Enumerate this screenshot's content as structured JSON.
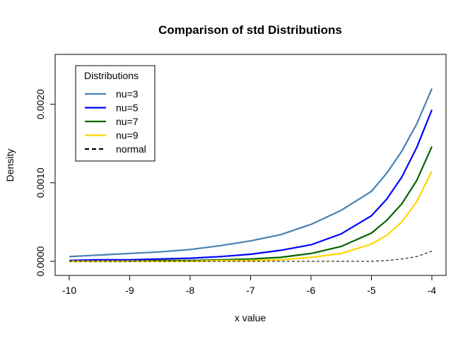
{
  "chart_data": {
    "type": "line",
    "title": "Comparison of std Distributions",
    "xlabel": "x value",
    "ylabel": "Density",
    "xlim": [
      -10,
      -4
    ],
    "ylim": [
      -0.0001,
      0.0026
    ],
    "xticks": [
      -10,
      -9,
      -8,
      -7,
      -6,
      -5,
      -4
    ],
    "xtick_labels": [
      "-10",
      "-9",
      "-8",
      "-7",
      "-6",
      "-5",
      "-4"
    ],
    "yticks": [
      0,
      0.001,
      0.002
    ],
    "ytick_labels": [
      "0.0000",
      "0.0010",
      "0.0020"
    ],
    "grid": false,
    "legend": {
      "title": "Distributions",
      "position": "top-left"
    },
    "x": [
      -10,
      -9.5,
      -9,
      -8.5,
      -8,
      -7.5,
      -7,
      -6.5,
      -6,
      -5.5,
      -5,
      -4.75,
      -4.5,
      -4.25,
      -4
    ],
    "series": [
      {
        "name": "nu=3",
        "color": "#4682B4",
        "dash": "solid",
        "values": [
          6e-05,
          8e-05,
          0.0001,
          0.00012,
          0.00015,
          0.0002,
          0.00026,
          0.00034,
          0.00047,
          0.00065,
          0.00089,
          0.00112,
          0.0014,
          0.00175,
          0.0022
        ]
      },
      {
        "name": "nu=5",
        "color": "#0000FF",
        "dash": "solid",
        "values": [
          1e-05,
          2e-05,
          2e-05,
          3e-05,
          4e-05,
          6e-05,
          9e-05,
          0.00014,
          0.00021,
          0.00035,
          0.00058,
          0.00079,
          0.00107,
          0.00145,
          0.00193
        ]
      },
      {
        "name": "nu=7",
        "color": "#006400",
        "dash": "solid",
        "values": [
          0,
          0,
          0,
          1e-05,
          1e-05,
          2e-05,
          3e-05,
          5e-05,
          0.0001,
          0.00019,
          0.00036,
          0.00052,
          0.00073,
          0.00103,
          0.00146
        ]
      },
      {
        "name": "nu=9",
        "color": "#FFD700",
        "dash": "solid",
        "values": [
          0,
          0,
          0,
          0,
          0,
          1e-05,
          1e-05,
          2e-05,
          5e-05,
          0.0001,
          0.00022,
          0.00033,
          0.0005,
          0.00076,
          0.00115
        ]
      },
      {
        "name": "normal",
        "color": "#000000",
        "dash": "dashed",
        "values": [
          0,
          0,
          0,
          0,
          0,
          0,
          0,
          0,
          0,
          0,
          0,
          1e-05,
          3e-05,
          6e-05,
          0.00013
        ]
      }
    ]
  }
}
